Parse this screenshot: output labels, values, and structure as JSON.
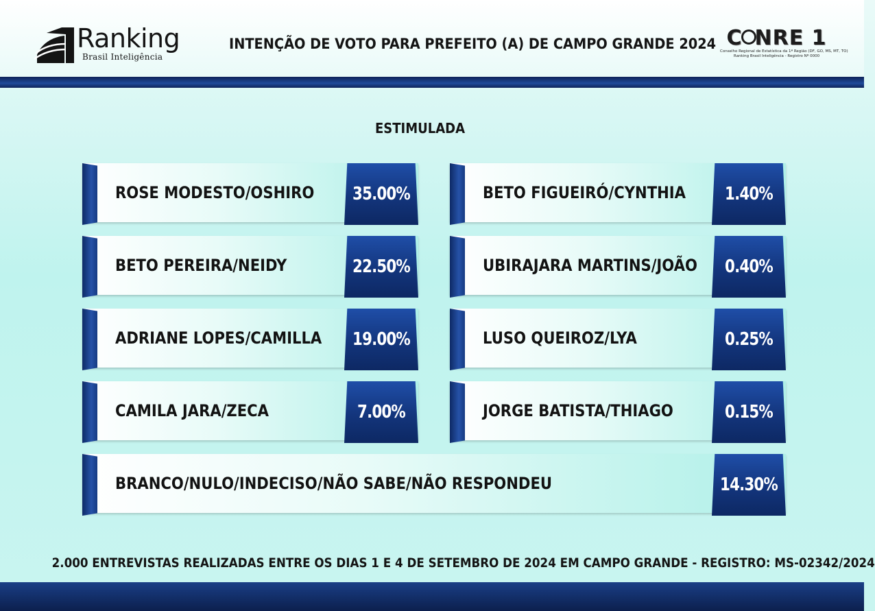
{
  "header": {
    "logo_text": "Ranking",
    "logo_subtext": "Brasil Inteligência",
    "title": "INTENÇÃO DE VOTO PARA PREFEITO (A) DE CAMPO GRANDE 2024",
    "conre_text_before": "C",
    "conre_text_after": "NRE 1",
    "conre_line1": "Conselho Regional de Estatística da 1ª Região (DF, GO, MS, MT, TO)",
    "conre_line2": "Ranking Brasil Inteligência - Registro Nº 0000"
  },
  "subtitle": "ESTIMULADA",
  "colors": {
    "accent_dark": "#0d2258",
    "accent_mid": "#1f4ea8",
    "background": "#bff3ee"
  },
  "chart_data": {
    "type": "table",
    "title": "INTENÇÃO DE VOTO PARA PREFEITO (A) DE CAMPO GRANDE 2024",
    "subtitle": "ESTIMULADA",
    "unit": "%",
    "rows": [
      {
        "name": "ROSE MODESTO/OSHIRO",
        "value": 35.0,
        "label": "35.00%"
      },
      {
        "name": "BETO PEREIRA/NEIDY",
        "value": 22.5,
        "label": "22.50%"
      },
      {
        "name": "ADRIANE LOPES/CAMILLA",
        "value": 19.0,
        "label": "19.00%"
      },
      {
        "name": "CAMILA JARA/ZECA",
        "value": 7.0,
        "label": "7.00%"
      },
      {
        "name": "BETO FIGUEIRÓ/CYNTHIA",
        "value": 1.4,
        "label": "1.40%"
      },
      {
        "name": "UBIRAJARA MARTINS/JOÃO",
        "value": 0.4,
        "label": "0.40%"
      },
      {
        "name": "LUSO QUEIROZ/LYA",
        "value": 0.25,
        "label": "0.25%"
      },
      {
        "name": "JORGE BATISTA/THIAGO",
        "value": 0.15,
        "label": "0.15%"
      },
      {
        "name": "BRANCO/NULO/INDECISO/NÃO SABE/NÃO RESPONDEU",
        "value": 14.3,
        "label": "14.30%"
      }
    ]
  },
  "footnote": "2.000 ENTREVISTAS REALIZADAS ENTRE OS DIAS 1 E 4 DE SETEMBRO DE 2024 EM CAMPO GRANDE - REGISTRO:  MS-02342/2024"
}
